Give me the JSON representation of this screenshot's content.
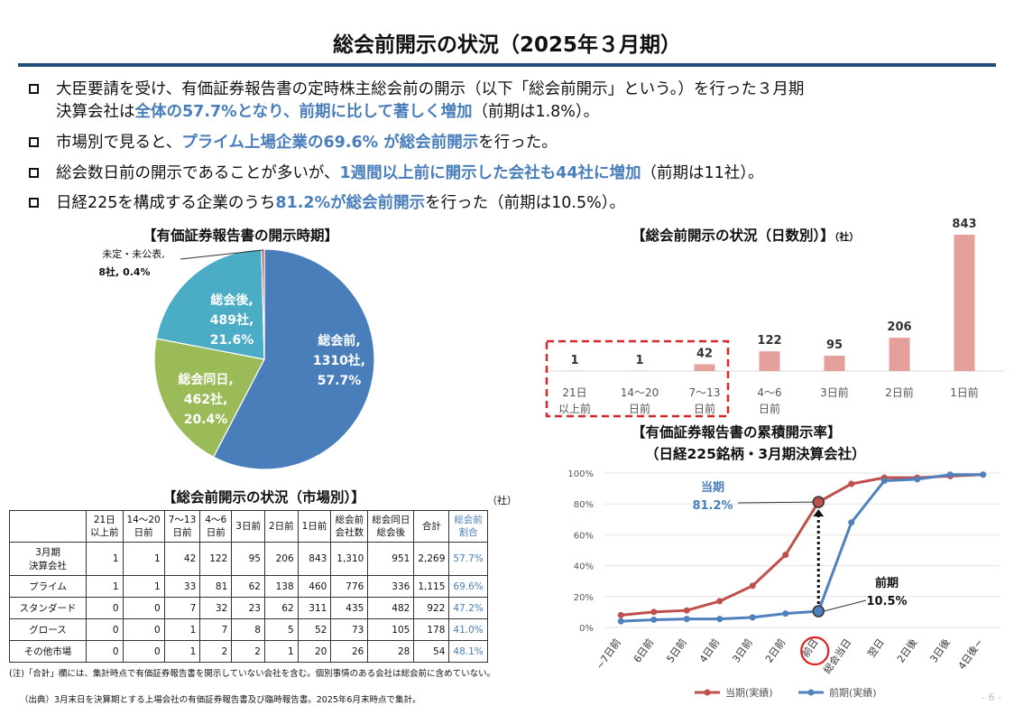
{
  "page": {
    "title": "総会前開示の状況（2025年３月期）",
    "page_number": "- 6 -"
  },
  "bullets": [
    {
      "line1_pre": "大臣要請を受け、有価証券報告書の定時株主総会前の開示（以下「総会前開示」という。）を行った３月期",
      "line2_pre": "決算会社は",
      "line2_hl": "全体の57.7%となり、前期に比して著しく増加",
      "line2_post": "（前期は1.8%）。"
    },
    {
      "pre": "市場別で見ると、",
      "hl": "プライム上場企業の69.6% が総会前開示",
      "post": "を行った。"
    },
    {
      "pre": "総会数日前の開示であることが多いが、",
      "hl": "1週間以上前に開示した会社も44社に増加",
      "post": "（前期は11社）。"
    },
    {
      "pre": "日経225を構成する企業のうち",
      "hl": "81.2%が総会前開示",
      "post": "を行った（前期は10.5%）。"
    }
  ],
  "colors": {
    "blue": "#4a7ebb",
    "pie_blue": "#4a7ebb",
    "pie_green": "#9bbb59",
    "pie_cyan": "#4bacc6",
    "pie_red": "#c0504d",
    "bar_pink": "#e6a09c",
    "line_red": "#c0504d",
    "line_blue": "#4f81bd",
    "rule": "#1f4e79"
  },
  "pie_title": "【有価証券報告書の開示時期】",
  "bar_title": "【総会前開示の状況（日数別）】",
  "bar_unit": "（社）",
  "line_title_1": "【有価証券報告書の累積開示率】",
  "line_title_2": "（日経225銘柄・3月期決算会社）",
  "table_title": "【総会前開示の状況（市場別）】",
  "table_unit": "（社）",
  "chart_data": [
    {
      "type": "pie",
      "slices": [
        {
          "label_lines": [
            "総会前,",
            "1310社,",
            "57.7%"
          ],
          "value": 57.7
        },
        {
          "label_lines": [
            "総会同日,",
            "462社,",
            "20.4%"
          ],
          "value": 20.4
        },
        {
          "label_lines": [
            "総会後,",
            "489社,",
            "21.6%"
          ],
          "value": 21.6
        },
        {
          "label_lines": [
            "未定・未公表,",
            "8社, 0.4%"
          ],
          "value": 0.4
        }
      ]
    },
    {
      "type": "bar",
      "categories": [
        [
          "21日",
          "以上前"
        ],
        [
          "14～20",
          "日前"
        ],
        [
          "7～13",
          "日前"
        ],
        [
          "4～6",
          "日前"
        ],
        [
          "3日前"
        ],
        [
          "2日前"
        ],
        [
          "1日前"
        ]
      ],
      "values": [
        1,
        1,
        42,
        122,
        95,
        206,
        843
      ]
    },
    {
      "type": "line",
      "categories": [
        "~7日前",
        "6日前",
        "5日前",
        "4日前",
        "3日前",
        "2日前",
        "前日",
        "総会当日",
        "翌日",
        "2日後",
        "3日後",
        "4日後~"
      ],
      "y_ticks": [
        "0%",
        "20%",
        "40%",
        "60%",
        "80%",
        "100%"
      ],
      "ylim": [
        0,
        100
      ],
      "series": [
        {
          "name": "当期(実績)",
          "values": [
            8,
            10,
            11,
            17,
            27,
            47,
            81.2,
            93,
            97,
            97,
            98,
            99
          ]
        },
        {
          "name": "前期(実績)",
          "values": [
            4,
            5,
            5.5,
            5.5,
            6.5,
            9,
            10.5,
            68,
            95,
            96,
            99,
            99
          ]
        }
      ],
      "annotations": [
        {
          "lines": [
            "当期",
            "81.2%"
          ]
        },
        {
          "lines": [
            "前期",
            "10.5%"
          ]
        }
      ]
    },
    {
      "type": "table",
      "columns": [
        [
          "21日",
          "以上前"
        ],
        [
          "14～20",
          "日前"
        ],
        [
          "7～13",
          "日前"
        ],
        [
          "4～6",
          "日前"
        ],
        [
          "3日前"
        ],
        [
          "2日前"
        ],
        [
          "1日前"
        ],
        [
          "総会前",
          "会社数"
        ],
        [
          "総会同日",
          "総会後"
        ],
        [
          "合計"
        ],
        [
          "総会前",
          "割合"
        ]
      ],
      "rows": [
        {
          "label": [
            "3月期",
            "決算会社"
          ],
          "cells": [
            "1",
            "1",
            "42",
            "122",
            "95",
            "206",
            "843",
            "1,310",
            "951",
            "2,269",
            "57.7%"
          ]
        },
        {
          "label": [
            "プライム"
          ],
          "cells": [
            "1",
            "1",
            "33",
            "81",
            "62",
            "138",
            "460",
            "776",
            "336",
            "1,115",
            "69.6%"
          ]
        },
        {
          "label": [
            "スタンダード"
          ],
          "cells": [
            "0",
            "0",
            "7",
            "32",
            "23",
            "62",
            "311",
            "435",
            "482",
            "922",
            "47.2%"
          ]
        },
        {
          "label": [
            "グロース"
          ],
          "cells": [
            "0",
            "0",
            "1",
            "7",
            "8",
            "5",
            "52",
            "73",
            "105",
            "178",
            "41.0%"
          ]
        },
        {
          "label": [
            "その他市場"
          ],
          "cells": [
            "0",
            "0",
            "1",
            "2",
            "2",
            "1",
            "20",
            "26",
            "28",
            "54",
            "48.1%"
          ]
        }
      ]
    }
  ],
  "notes": {
    "note1": "(注)「合計」欄には、集計時点で有価証券報告書を開示していない会社を含む。個別事情のある会社は総会前に含めていない。",
    "note2": "（出典）3月末日を決算期とする上場会社の有価証券報告書及び臨時報告書。2025年6月末時点で集計。"
  }
}
